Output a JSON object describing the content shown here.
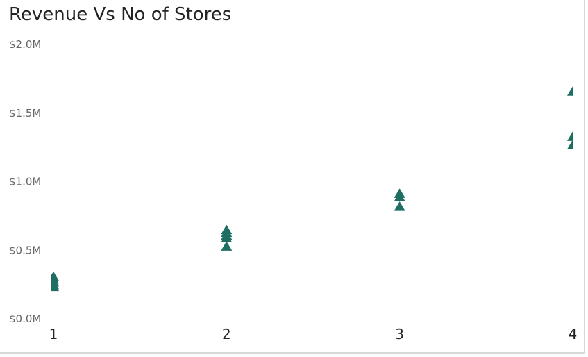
{
  "chart_data": {
    "type": "scatter",
    "title": "Revenue Vs No of Stores",
    "xlabel": "",
    "ylabel": "",
    "x_ticks": [
      "1",
      "2",
      "3",
      "4"
    ],
    "xlim": [
      1,
      4
    ],
    "ylim": [
      0,
      2000000
    ],
    "y_ticks": [
      {
        "value": 0,
        "label": "$0.0M"
      },
      {
        "value": 500000,
        "label": "$0.5M"
      },
      {
        "value": 1000000,
        "label": "$1.0M"
      },
      {
        "value": 1500000,
        "label": "$1.5M"
      },
      {
        "value": 2000000,
        "label": "$2.0M"
      }
    ],
    "grid": false,
    "marker": "triangle",
    "color": "#1F6E63",
    "points": [
      {
        "x": 1,
        "y": 300000
      },
      {
        "x": 1,
        "y": 280000
      },
      {
        "x": 1,
        "y": 260000
      },
      {
        "x": 1,
        "y": 240000
      },
      {
        "x": 1,
        "y": 225000
      },
      {
        "x": 2,
        "y": 640000
      },
      {
        "x": 2,
        "y": 620000
      },
      {
        "x": 2,
        "y": 600000
      },
      {
        "x": 2,
        "y": 580000
      },
      {
        "x": 2,
        "y": 520000
      },
      {
        "x": 3,
        "y": 905000
      },
      {
        "x": 3,
        "y": 880000
      },
      {
        "x": 3,
        "y": 810000
      },
      {
        "x": 4,
        "y": 1650000
      },
      {
        "x": 4,
        "y": 1320000
      },
      {
        "x": 4,
        "y": 1260000
      }
    ]
  }
}
